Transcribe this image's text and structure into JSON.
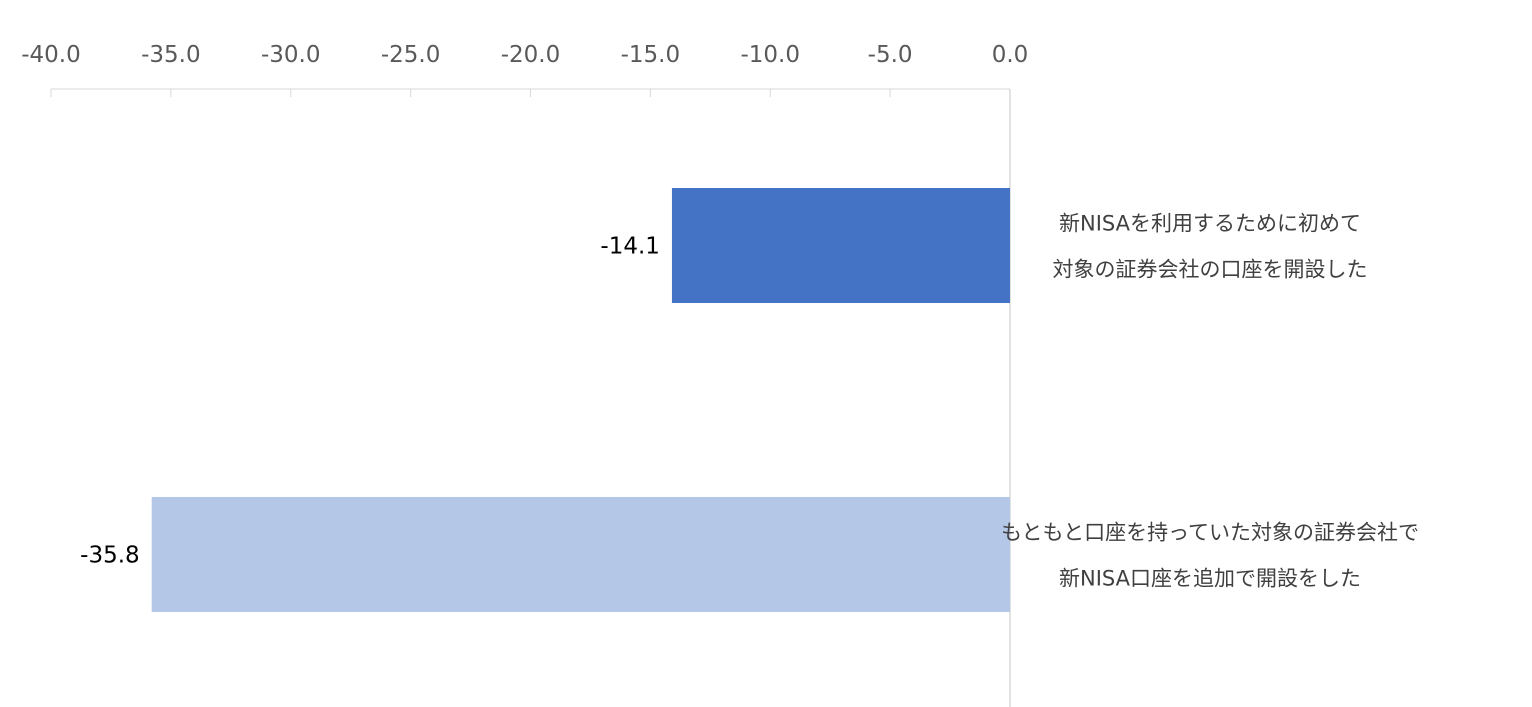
{
  "chart_data": {
    "type": "bar",
    "orientation": "horizontal",
    "categories": [
      [
        "新NISAを利用するために初めて",
        "対象の証券会社の口座を開設した"
      ],
      [
        "もともと口座を持っていた対象の証券会社で",
        "新NISA口座を追加で開設をした"
      ]
    ],
    "values": [
      -14.1,
      -35.8
    ],
    "data_labels": [
      "-14.1",
      "-35.8"
    ],
    "bar_colors": [
      "#4472c4",
      "#b4c7e7"
    ],
    "xlim": [
      -40,
      0
    ],
    "xticks": [
      -40,
      -35,
      -30,
      -25,
      -20,
      -15,
      -10,
      -5,
      0
    ],
    "xtick_labels": [
      "-40.0",
      "-35.0",
      "-30.0",
      "-25.0",
      "-20.0",
      "-15.0",
      "-10.0",
      "-5.0",
      "0.0"
    ],
    "x_axis_position": "top",
    "category_label_position": "right",
    "grid": false,
    "axis_color": "#d9d9d9"
  }
}
